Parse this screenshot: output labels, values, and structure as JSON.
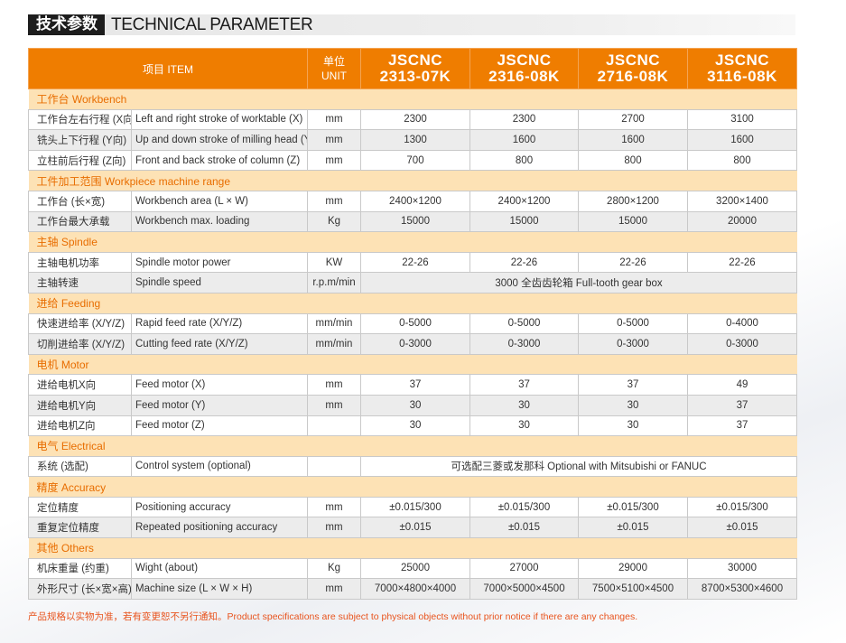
{
  "title": {
    "cn": "技术参数",
    "en": "TECHNICAL PARAMETER"
  },
  "header": {
    "item": "项目 ITEM",
    "unit_cn": "单位",
    "unit_en": "UNIT",
    "models": [
      {
        "brand": "JSCNC",
        "code": "2313-07K"
      },
      {
        "brand": "JSCNC",
        "code": "2316-08K"
      },
      {
        "brand": "JSCNC",
        "code": "2716-08K"
      },
      {
        "brand": "JSCNC",
        "code": "3116-08K"
      }
    ]
  },
  "sections": [
    {
      "title": "工作台 Workbench",
      "rows": [
        {
          "cn": "工作台左右行程 (X向)",
          "en": "Left and right stroke of worktable (X)",
          "unit": "mm",
          "values": [
            "2300",
            "2300",
            "2700",
            "3100"
          ]
        },
        {
          "cn": "铣头上下行程 (Y向)",
          "en": "Up and down stroke of milling head (Y)",
          "unit": "mm",
          "values": [
            "1300",
            "1600",
            "1600",
            "1600"
          ]
        },
        {
          "cn": "立柱前后行程 (Z向)",
          "en": "Front and back stroke of column (Z)",
          "unit": "mm",
          "values": [
            "700",
            "800",
            "800",
            "800"
          ]
        }
      ]
    },
    {
      "title": "工件加工范围 Workpiece machine range",
      "rows": [
        {
          "cn": "工作台 (长×宽)",
          "en": "Workbench area (L × W)",
          "unit": "mm",
          "values": [
            "2400×1200",
            "2400×1200",
            "2800×1200",
            "3200×1400"
          ]
        },
        {
          "cn": "工作台最大承载",
          "en": "Workbench max. loading",
          "unit": "Kg",
          "values": [
            "15000",
            "15000",
            "15000",
            "20000"
          ]
        }
      ]
    },
    {
      "title": "主轴 Spindle",
      "rows": [
        {
          "cn": "主轴电机功率",
          "en": "Spindle motor power",
          "unit": "KW",
          "values": [
            "22-26",
            "22-26",
            "22-26",
            "22-26"
          ]
        },
        {
          "cn": "主轴转速",
          "en": "Spindle speed",
          "unit": "r.p.m/min",
          "merged": "3000 全齿齿轮箱  Full-tooth gear box"
        }
      ]
    },
    {
      "title": "进给 Feeding",
      "rows": [
        {
          "cn": "快速进给率 (X/Y/Z)",
          "en": "Rapid feed rate (X/Y/Z)",
          "unit": "mm/min",
          "values": [
            "0-5000",
            "0-5000",
            "0-5000",
            "0-4000"
          ]
        },
        {
          "cn": "切削进给率 (X/Y/Z)",
          "en": "Cutting feed rate (X/Y/Z)",
          "unit": "mm/min",
          "values": [
            "0-3000",
            "0-3000",
            "0-3000",
            "0-3000"
          ]
        }
      ]
    },
    {
      "title": "电机 Motor",
      "rows": [
        {
          "cn": "进给电机X向",
          "en": "Feed motor (X)",
          "unit": "mm",
          "values": [
            "37",
            "37",
            "37",
            "49"
          ]
        },
        {
          "cn": "进给电机Y向",
          "en": "Feed motor (Y)",
          "unit": "mm",
          "values": [
            "30",
            "30",
            "30",
            "37"
          ]
        },
        {
          "cn": "进给电机Z向",
          "en": "Feed motor (Z)",
          "unit": "",
          "values": [
            "30",
            "30",
            "30",
            "37"
          ]
        }
      ]
    },
    {
      "title": "电气 Electrical",
      "rows": [
        {
          "cn": "系统 (选配)",
          "en": "Control system (optional)",
          "unit": "",
          "merged": "可选配三菱或发那科   Optional with Mitsubishi or FANUC"
        }
      ]
    },
    {
      "title": "精度 Accuracy",
      "rows": [
        {
          "cn": "定位精度",
          "en": "Positioning accuracy",
          "unit": "mm",
          "values": [
            "±0.015/300",
            "±0.015/300",
            "±0.015/300",
            "±0.015/300"
          ]
        },
        {
          "cn": "重复定位精度",
          "en": "Repeated positioning accuracy",
          "unit": "mm",
          "values": [
            "±0.015",
            "±0.015",
            "±0.015",
            "±0.015"
          ]
        }
      ]
    },
    {
      "title": "其他 Others",
      "rows": [
        {
          "cn": "机床重量 (约重)",
          "en": "Wight (about)",
          "unit": "Kg",
          "values": [
            "25000",
            "27000",
            "29000",
            "30000"
          ]
        },
        {
          "cn": "外形尺寸 (长×宽×高)",
          "en": "Machine size (L × W × H)",
          "unit": "mm",
          "values": [
            "7000×4800×4000",
            "7000×5000×4500",
            "7500×5100×4500",
            "8700×5300×4600"
          ]
        }
      ]
    }
  ],
  "note": "产品规格以实物为准，若有变更恕不另行通知。Product specifications are subject to physical objects without prior notice if there are any changes.",
  "colors": {
    "accent": "#ef7d00",
    "section_bg": "#fde2b5",
    "section_text": "#e86d00",
    "note": "#e8541e"
  }
}
